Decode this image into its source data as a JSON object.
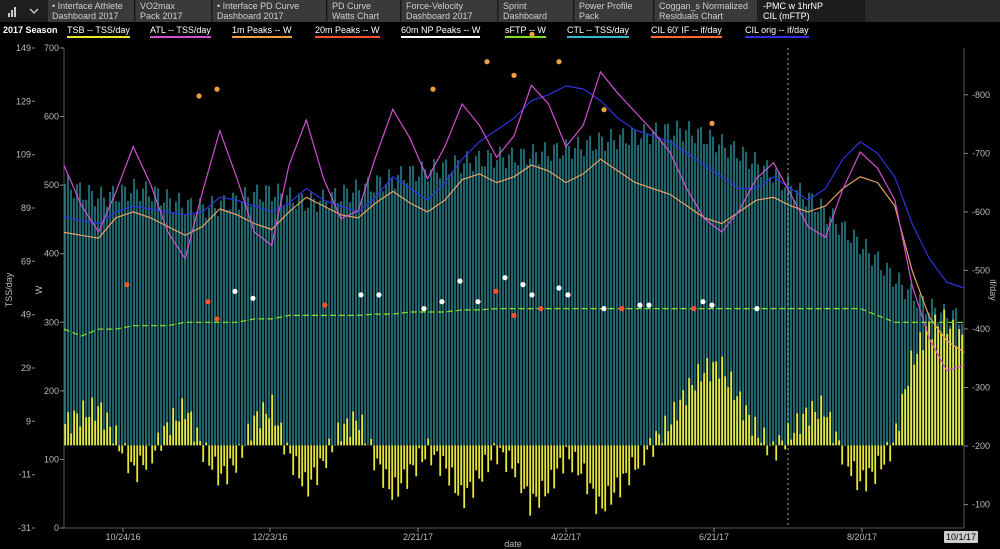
{
  "toolbar": {
    "season": "2017 Season"
  },
  "tabs": [
    {
      "line1": "• Interface Athlete",
      "line2": "Dashboard 2017",
      "active": false
    },
    {
      "line1": "VO2max",
      "line2": "Pack 2017",
      "active": false
    },
    {
      "line1": "• Interface PD Curve",
      "line2": "Dashboard 2017",
      "active": false
    },
    {
      "line1": "PD Curve",
      "line2": "Watts Chart",
      "active": false
    },
    {
      "line1": "Force-Velocity",
      "line2": "Dashboard 2017",
      "active": false
    },
    {
      "line1": "Sprint",
      "line2": "Dashboard",
      "active": false
    },
    {
      "line1": "Power Profile",
      "line2": "Pack",
      "active": false
    },
    {
      "line1": "Coggan_s Normalized",
      "line2": "Residuals Chart",
      "active": false
    },
    {
      "line1": "-PMC w 1hrNP",
      "line2": "CIL (mFTP)",
      "active": true
    }
  ],
  "colors": {
    "tsb": "#e8e830",
    "atl": "#d050d0",
    "peak1m": "#f0a040",
    "peak20m": "#ff5030",
    "np60m": "#ffffff",
    "sftp": "#80e020",
    "ctl": "#38b8c8",
    "cil60": "#ff6a30",
    "cilorig": "#3030e0",
    "orange_line": "#e8a060"
  },
  "chart_data": {
    "type": "line",
    "legend": [
      {
        "label": "TSB -- TSS/day",
        "color_key": "tsb"
      },
      {
        "label": "ATL -- TSS/day",
        "color_key": "atl"
      },
      {
        "label": "1m Peaks -- W",
        "color_key": "peak1m"
      },
      {
        "label": "20m Peaks -- W",
        "color_key": "peak20m"
      },
      {
        "label": "60m NP Peaks -- W",
        "color_key": "np60m"
      },
      {
        "label": "sFTP -- W",
        "color_key": "sftp"
      },
      {
        "label": "CTL -- TSS/day",
        "color_key": "ctl"
      },
      {
        "label": "CIL 60' IF -- if/day",
        "color_key": "cil60"
      },
      {
        "label": "CIL orig -- if/day",
        "color_key": "cilorig"
      }
    ],
    "xlabel": "date",
    "x_ticks": [
      "10/24/16",
      "12/23/16",
      "2/21/17",
      "4/22/17",
      "6/21/17",
      "8/20/17"
    ],
    "x_end_label": "10/1/17",
    "y_tss": {
      "label": "TSS/day",
      "ticks": [
        "149",
        "129",
        "109",
        "89",
        "69",
        "49",
        "29",
        "9",
        "-11",
        "-31"
      ],
      "range": [
        -31,
        149
      ]
    },
    "y_w": {
      "label": "W",
      "ticks": [
        "700",
        "600",
        "500",
        "400",
        "300",
        "200",
        "100",
        "0"
      ],
      "range": [
        0,
        700
      ]
    },
    "y_right": {
      "label": "if/day",
      "ticks": [
        "800",
        "700",
        "600",
        "500",
        "400",
        "300",
        "200",
        "100"
      ],
      "range": [
        60,
        880
      ]
    },
    "ctl_tss": [
      98,
      95,
      93,
      94,
      96,
      95,
      92,
      90,
      89,
      90,
      92,
      94,
      95,
      93,
      91,
      92,
      94,
      96,
      98,
      100,
      102,
      103,
      104,
      106,
      107,
      108,
      108,
      109,
      110,
      111,
      112,
      114,
      115,
      116,
      117,
      118,
      118,
      116,
      113,
      110,
      106,
      102,
      97,
      93,
      88,
      82,
      76,
      70,
      63,
      57,
      52,
      49,
      48
    ],
    "atl_tss": [
      105,
      90,
      80,
      95,
      112,
      98,
      80,
      70,
      95,
      118,
      100,
      80,
      75,
      105,
      122,
      100,
      85,
      88,
      108,
      126,
      115,
      100,
      112,
      128,
      120,
      108,
      116,
      135,
      128,
      112,
      120,
      140,
      132,
      125,
      118,
      110,
      96,
      85,
      80,
      88,
      100,
      106,
      94,
      82,
      78,
      96,
      110,
      104,
      92,
      60,
      40,
      28,
      30
    ],
    "tsb_tss": [
      8,
      12,
      14,
      2,
      -10,
      -4,
      8,
      14,
      -2,
      -12,
      -6,
      10,
      14,
      -4,
      -16,
      -6,
      6,
      10,
      -6,
      -18,
      -10,
      -2,
      -8,
      -20,
      -12,
      -2,
      -8,
      -22,
      -16,
      -4,
      -10,
      -24,
      -16,
      -8,
      0,
      8,
      20,
      28,
      30,
      18,
      6,
      -2,
      4,
      12,
      14,
      -2,
      -14,
      -10,
      0,
      30,
      44,
      46,
      40
    ],
    "cil_orig_if": [
      592,
      585,
      580,
      600,
      610,
      605,
      600,
      595,
      600,
      625,
      620,
      610,
      600,
      615,
      640,
      620,
      610,
      600,
      625,
      660,
      640,
      620,
      650,
      690,
      720,
      740,
      760,
      790,
      800,
      815,
      810,
      790,
      760,
      740,
      730,
      720,
      700,
      680,
      660,
      640,
      640,
      660,
      640,
      620,
      640,
      690,
      720,
      700,
      660,
      580,
      520,
      480,
      470
    ],
    "cil_60_if": [
      565,
      560,
      555,
      590,
      600,
      590,
      575,
      560,
      575,
      605,
      595,
      580,
      570,
      600,
      625,
      610,
      595,
      590,
      615,
      635,
      615,
      600,
      620,
      655,
      665,
      650,
      660,
      680,
      670,
      650,
      665,
      690,
      670,
      650,
      640,
      630,
      610,
      590,
      580,
      600,
      620,
      625,
      610,
      600,
      610,
      640,
      660,
      650,
      610,
      500,
      420,
      380,
      360
    ],
    "sftp_w": [
      290,
      280,
      290,
      290,
      295,
      295,
      295,
      300,
      300,
      300,
      300,
      305,
      305,
      310,
      310,
      310,
      310,
      310,
      312,
      312,
      315,
      315,
      315,
      318,
      318,
      320,
      320,
      320,
      320,
      320,
      320,
      320,
      320,
      320,
      320,
      320,
      320,
      320,
      320,
      320,
      320,
      320,
      320,
      320,
      320,
      320,
      320,
      310,
      300,
      300,
      300,
      300,
      300
    ],
    "peaks_1m_w": [
      [
        0.15,
        630
      ],
      [
        0.17,
        640
      ],
      [
        0.23,
        920
      ],
      [
        0.41,
        640
      ],
      [
        0.47,
        680
      ],
      [
        0.5,
        660
      ],
      [
        0.52,
        720
      ],
      [
        0.55,
        680
      ],
      [
        0.6,
        610
      ],
      [
        0.72,
        590
      ]
    ],
    "peaks_20m_w": [
      [
        0.07,
        355
      ],
      [
        0.16,
        330
      ],
      [
        0.17,
        305
      ],
      [
        0.29,
        325
      ],
      [
        0.48,
        345
      ],
      [
        0.5,
        310
      ],
      [
        0.53,
        320
      ],
      [
        0.62,
        320
      ],
      [
        0.7,
        320
      ]
    ],
    "np60m_w": [
      [
        0.19,
        345
      ],
      [
        0.21,
        335
      ],
      [
        0.33,
        340
      ],
      [
        0.35,
        340
      ],
      [
        0.4,
        320
      ],
      [
        0.42,
        330
      ],
      [
        0.44,
        360
      ],
      [
        0.46,
        330
      ],
      [
        0.49,
        365
      ],
      [
        0.51,
        355
      ],
      [
        0.52,
        340
      ],
      [
        0.55,
        350
      ],
      [
        0.56,
        340
      ],
      [
        0.6,
        320
      ],
      [
        0.64,
        325
      ],
      [
        0.65,
        325
      ],
      [
        0.71,
        330
      ],
      [
        0.72,
        325
      ],
      [
        0.77,
        320
      ]
    ],
    "grid": false,
    "legend_position": "top"
  }
}
